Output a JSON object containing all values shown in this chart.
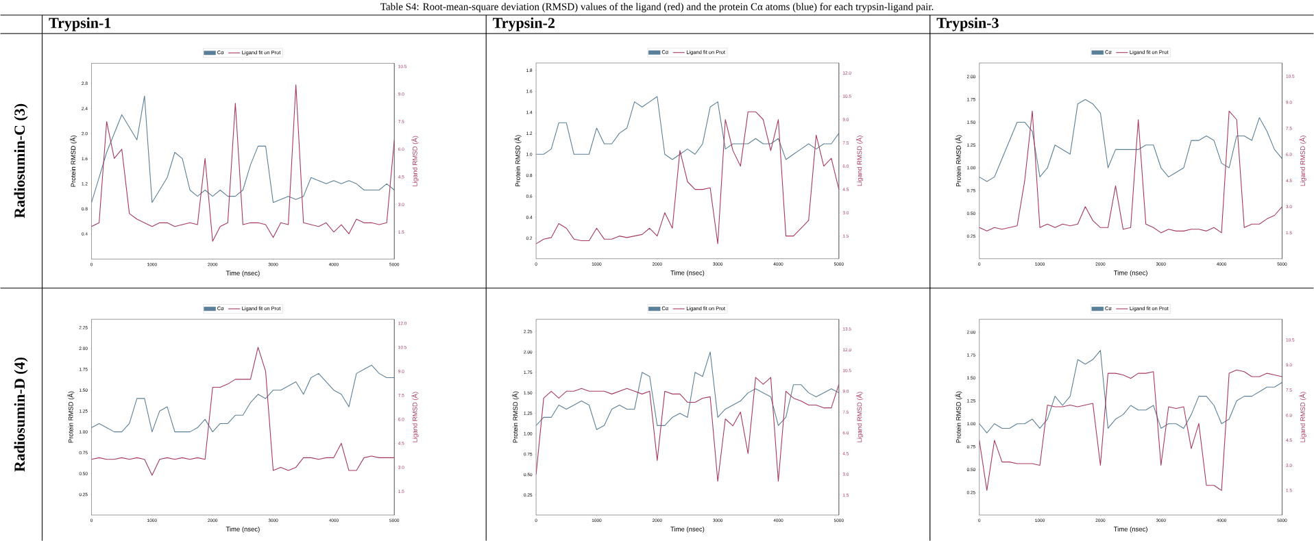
{
  "chart_data": [
    {
      "type": "line",
      "title": "Trypsin-1",
      "annotations": [
        "Table S4: Root-mean-square deviation (RMSD) values of the ligand (red) and the protein Cα atoms (blue) for each trypsin-ligand pair.",
        "Radiosumin-C (3)"
      ],
      "xlabel": "Time (nsec)",
      "ylabel": "Protein RMSD (Å)",
      "y2label": "Ligand RMSD (Å)",
      "legend": "top",
      "marker": "none",
      "line_style": "solid",
      "xlim": [
        0,
        5000
      ],
      "xticks": [
        0,
        1000,
        2000,
        3000,
        4000,
        5000
      ],
      "ylim": [
        0,
        3.12
      ],
      "yticks": [
        0.4,
        0.8,
        1.2,
        1.6,
        {
          "value": 2,
          "label": "2.0"
        },
        2.4,
        2.8
      ],
      "y2lim": [
        0.03,
        10.67
      ],
      "y2ticks": [
        1.5,
        {
          "value": 3,
          "label": "3.0"
        },
        4.5,
        {
          "value": 6,
          "label": "6.0"
        },
        7.5,
        {
          "value": 9,
          "label": "9.0"
        },
        10.5
      ],
      "x": [
        0,
        125,
        250,
        375,
        500,
        625,
        750,
        875,
        1000,
        1125,
        1250,
        1375,
        1500,
        1625,
        1750,
        1875,
        2000,
        2125,
        2250,
        2375,
        2500,
        2625,
        2750,
        2875,
        3000,
        3125,
        3250,
        3375,
        3500,
        3625,
        3750,
        3875,
        4000,
        4125,
        4250,
        4375,
        4500,
        4625,
        4750,
        4875,
        5000
      ],
      "series": [
        {
          "name": "Cα",
          "color": "#5a7f98",
          "values": [
            0.9,
            1.3,
            1.7,
            2.0,
            2.3,
            2.1,
            1.9,
            2.6,
            0.9,
            1.1,
            1.3,
            1.7,
            1.6,
            1.1,
            1.0,
            1.1,
            1.0,
            1.1,
            1.0,
            1.0,
            1.1,
            1.5,
            1.8,
            1.8,
            0.9,
            0.95,
            1.0,
            0.95,
            1.0,
            1.3,
            1.25,
            1.2,
            1.25,
            1.2,
            1.25,
            1.2,
            1.1,
            1.1,
            1.1,
            1.2,
            1.1
          ]
        },
        {
          "name": "Ligand fit on Prot",
          "color": "#a6385b",
          "axis": "y2",
          "values": [
            1.8,
            2.0,
            7.5,
            5.5,
            6.0,
            2.5,
            2.2,
            2.0,
            1.8,
            2.0,
            2.0,
            1.8,
            1.9,
            2.0,
            1.9,
            5.5,
            1.0,
            1.8,
            2.0,
            8.5,
            1.9,
            2.0,
            2.0,
            1.9,
            1.2,
            2.0,
            1.9,
            9.5,
            2.0,
            1.9,
            1.8,
            2.0,
            1.5,
            1.9,
            1.4,
            2.2,
            2.0,
            2.0,
            1.9,
            2.0,
            6.5
          ]
        }
      ]
    },
    {
      "type": "line",
      "title": "Trypsin-2",
      "xlabel": "Time (nsec)",
      "ylabel": "Protein RMSD (Å)",
      "y2label": "Ligand RMSD (Å)",
      "legend": "top",
      "marker": "none",
      "line_style": "solid",
      "xlim": [
        0,
        5000
      ],
      "xticks": [
        0,
        1000,
        2000,
        3000,
        4000,
        5000
      ],
      "ylim": [
        0.005,
        1.87
      ],
      "yticks": [
        0.2,
        0.4,
        0.6,
        0.8,
        {
          "value": 1,
          "label": "1.0"
        },
        1.2,
        1.4,
        1.6,
        1.8
      ],
      "y2lim": [
        0.04,
        12.64
      ],
      "y2ticks": [
        1.5,
        {
          "value": 3,
          "label": "3.0"
        },
        4.5,
        {
          "value": 6,
          "label": "6.0"
        },
        7.5,
        {
          "value": 9,
          "label": "9.0"
        },
        10.5,
        {
          "value": 12,
          "label": "12.0"
        }
      ],
      "x": [
        0,
        125,
        250,
        375,
        500,
        625,
        750,
        875,
        1000,
        1125,
        1250,
        1375,
        1500,
        1625,
        1750,
        1875,
        2000,
        2125,
        2250,
        2375,
        2500,
        2625,
        2750,
        2875,
        3000,
        3125,
        3250,
        3375,
        3500,
        3625,
        3750,
        3875,
        4000,
        4125,
        4250,
        4375,
        4500,
        4625,
        4750,
        4875,
        5000
      ],
      "series": [
        {
          "name": "Cα",
          "color": "#5a7f98",
          "values": [
            1.0,
            1.0,
            1.05,
            1.3,
            1.3,
            1.0,
            1.0,
            1.0,
            1.25,
            1.1,
            1.1,
            1.2,
            1.25,
            1.5,
            1.45,
            1.5,
            1.55,
            1.0,
            0.95,
            1.0,
            1.05,
            1.0,
            1.1,
            1.45,
            1.5,
            1.05,
            1.1,
            1.1,
            1.1,
            1.15,
            1.1,
            1.1,
            1.15,
            0.95,
            1.0,
            1.05,
            1.1,
            1.05,
            1.1,
            1.1,
            1.2
          ]
        },
        {
          "name": "Ligand fit on Prot",
          "color": "#a6385b",
          "axis": "y2",
          "values": [
            1.0,
            1.3,
            1.4,
            2.3,
            2.0,
            1.3,
            1.2,
            1.2,
            2.0,
            1.3,
            1.3,
            1.5,
            1.4,
            1.5,
            1.6,
            2.0,
            1.5,
            3.0,
            2.0,
            7.0,
            5.0,
            4.5,
            4.5,
            4.6,
            1.0,
            9.0,
            7.0,
            6.0,
            9.5,
            9.5,
            9.0,
            7.0,
            9.0,
            1.5,
            1.5,
            2.0,
            2.5,
            8.0,
            6.0,
            6.5,
            4.5
          ]
        }
      ]
    },
    {
      "type": "line",
      "title": "Trypsin-3",
      "xlabel": "Time (nsec)",
      "ylabel": "Protein RMSD (Å)",
      "y2label": "Ligand RMSD (Å)",
      "legend": "top",
      "marker": "none",
      "line_style": "solid",
      "xlim": [
        0,
        5000
      ],
      "xticks": [
        0,
        1000,
        2000,
        3000,
        4000,
        5000
      ],
      "ylim": [
        0.003,
        2.15
      ],
      "yticks": [
        0.25,
        {
          "value": 0.5,
          "label": "0.50"
        },
        0.75,
        {
          "value": 1,
          "label": "1.00"
        },
        1.25,
        {
          "value": 1.5,
          "label": "1.50"
        },
        1.75,
        {
          "value": 2,
          "label": "2.00"
        }
      ],
      "y2lim": [
        0.01,
        11.26
      ],
      "y2ticks": [
        1.5,
        {
          "value": 3,
          "label": "3.0"
        },
        4.5,
        {
          "value": 6,
          "label": "6.0"
        },
        7.5,
        {
          "value": 9,
          "label": "9.0"
        },
        10.5
      ],
      "x": [
        0,
        125,
        250,
        375,
        500,
        625,
        750,
        875,
        1000,
        1125,
        1250,
        1375,
        1500,
        1625,
        1750,
        1875,
        2000,
        2125,
        2250,
        2375,
        2500,
        2625,
        2750,
        2875,
        3000,
        3125,
        3250,
        3375,
        3500,
        3625,
        3750,
        3875,
        4000,
        4125,
        4250,
        4375,
        4500,
        4625,
        4750,
        4875,
        5000
      ],
      "series": [
        {
          "name": "Cα",
          "color": "#5a7f98",
          "values": [
            0.9,
            0.85,
            0.9,
            1.1,
            1.3,
            1.5,
            1.5,
            1.4,
            0.9,
            1.0,
            1.25,
            1.2,
            1.15,
            1.7,
            1.75,
            1.7,
            1.6,
            1.0,
            1.2,
            1.2,
            1.2,
            1.2,
            1.25,
            1.25,
            1.0,
            0.9,
            0.95,
            1.0,
            1.3,
            1.3,
            1.35,
            1.3,
            1.05,
            1.0,
            1.35,
            1.35,
            1.3,
            1.55,
            1.4,
            1.2,
            1.1
          ]
        },
        {
          "name": "Ligand fit on Prot",
          "color": "#a6385b",
          "axis": "y2",
          "values": [
            1.8,
            1.6,
            1.8,
            1.7,
            1.8,
            1.9,
            4.5,
            8.5,
            1.8,
            2.0,
            1.8,
            2.0,
            1.9,
            2.0,
            3.0,
            2.2,
            1.8,
            1.8,
            4.2,
            1.7,
            1.8,
            8.0,
            2.0,
            1.8,
            1.5,
            1.7,
            1.6,
            1.6,
            1.7,
            1.7,
            1.6,
            1.8,
            1.5,
            8.5,
            8.0,
            1.8,
            2.0,
            2.0,
            2.3,
            2.5,
            3.0
          ]
        }
      ]
    },
    {
      "type": "line",
      "annotations": [
        "Radiosumin-D (4)"
      ],
      "xlabel": "Time (nsec)",
      "ylabel": "Protein RMSD (Å)",
      "y2label": "Ligand RMSD (Å)",
      "legend": "top",
      "marker": "none",
      "line_style": "solid",
      "xlim": [
        0,
        5000
      ],
      "xticks": [
        0,
        1000,
        2000,
        3000,
        4000,
        5000
      ],
      "ylim": [
        0.003,
        2.35
      ],
      "yticks": [
        0.25,
        {
          "value": 0.5,
          "label": "0.50"
        },
        0.75,
        {
          "value": 1,
          "label": "1.00"
        },
        1.25,
        {
          "value": 1.5,
          "label": "1.50"
        },
        1.75,
        {
          "value": 2,
          "label": "2.00"
        },
        2.25
      ],
      "y2lim": [
        0.02,
        12.25
      ],
      "y2ticks": [
        1.5,
        {
          "value": 3,
          "label": "3.0"
        },
        4.5,
        {
          "value": 6,
          "label": "6.0"
        },
        7.5,
        {
          "value": 9,
          "label": "9.0"
        },
        10.5,
        {
          "value": 12,
          "label": "12.0"
        }
      ],
      "x": [
        0,
        125,
        250,
        375,
        500,
        625,
        750,
        875,
        1000,
        1125,
        1250,
        1375,
        1500,
        1625,
        1750,
        1875,
        2000,
        2125,
        2250,
        2375,
        2500,
        2625,
        2750,
        2875,
        3000,
        3125,
        3250,
        3375,
        3500,
        3625,
        3750,
        3875,
        4000,
        4125,
        4250,
        4375,
        4500,
        4625,
        4750,
        4875,
        5000
      ],
      "series": [
        {
          "name": "Cα",
          "color": "#5a7f98",
          "values": [
            1.05,
            1.1,
            1.05,
            1.0,
            1.0,
            1.1,
            1.4,
            1.4,
            1.0,
            1.25,
            1.3,
            1.0,
            1.0,
            1.0,
            1.05,
            1.15,
            1.0,
            1.1,
            1.1,
            1.2,
            1.2,
            1.35,
            1.45,
            1.4,
            1.5,
            1.5,
            1.55,
            1.6,
            1.45,
            1.65,
            1.7,
            1.6,
            1.5,
            1.45,
            1.3,
            1.7,
            1.75,
            1.8,
            1.7,
            1.65,
            1.65
          ]
        },
        {
          "name": "Ligand fit on Prot",
          "color": "#a6385b",
          "axis": "y2",
          "values": [
            3.5,
            3.6,
            3.5,
            3.5,
            3.6,
            3.5,
            3.6,
            3.5,
            2.5,
            3.5,
            3.6,
            3.5,
            3.6,
            3.5,
            3.6,
            3.5,
            8.0,
            8.0,
            8.2,
            8.5,
            8.5,
            8.5,
            10.5,
            9.0,
            2.8,
            3.0,
            2.8,
            3.0,
            3.6,
            3.6,
            3.5,
            3.6,
            3.6,
            4.5,
            2.8,
            2.8,
            3.6,
            3.7,
            3.6,
            3.6,
            3.6
          ]
        }
      ]
    },
    {
      "type": "line",
      "xlabel": "Time (nsec)",
      "ylabel": "Protein RMSD (Å)",
      "y2label": "Ligand RMSD (Å)",
      "legend": "top",
      "marker": "none",
      "line_style": "solid",
      "xlim": [
        0,
        5000
      ],
      "xticks": [
        0,
        1000,
        2000,
        3000,
        4000,
        5000
      ],
      "ylim": [
        0.005,
        2.4
      ],
      "yticks": [
        0.25,
        {
          "value": 0.5,
          "label": "0.50"
        },
        0.75,
        {
          "value": 1,
          "label": "1.00"
        },
        1.25,
        {
          "value": 1.5,
          "label": "1.50"
        },
        1.75,
        {
          "value": 2,
          "label": "2.00"
        },
        2.25
      ],
      "y2lim": [
        0.06,
        14.2
      ],
      "y2ticks": [
        1.5,
        {
          "value": 3,
          "label": "3.0"
        },
        4.5,
        {
          "value": 6,
          "label": "6.0"
        },
        7.5,
        {
          "value": 9,
          "label": "9.0"
        },
        10.5,
        {
          "value": 12,
          "label": "12.0"
        },
        13.5
      ],
      "x": [
        0,
        125,
        250,
        375,
        500,
        625,
        750,
        875,
        1000,
        1125,
        1250,
        1375,
        1500,
        1625,
        1750,
        1875,
        2000,
        2125,
        2250,
        2375,
        2500,
        2625,
        2750,
        2875,
        3000,
        3125,
        3250,
        3375,
        3500,
        3625,
        3750,
        3875,
        4000,
        4125,
        4250,
        4375,
        4500,
        4625,
        4750,
        4875,
        5000
      ],
      "series": [
        {
          "name": "Cα",
          "color": "#5a7f98",
          "values": [
            1.1,
            1.2,
            1.2,
            1.35,
            1.3,
            1.35,
            1.4,
            1.35,
            1.05,
            1.1,
            1.3,
            1.35,
            1.3,
            1.3,
            1.75,
            1.7,
            1.1,
            1.1,
            1.2,
            1.25,
            1.2,
            1.75,
            1.7,
            2.0,
            1.2,
            1.3,
            1.35,
            1.4,
            1.5,
            1.55,
            1.5,
            1.45,
            1.1,
            1.2,
            1.6,
            1.6,
            1.5,
            1.45,
            1.5,
            1.55,
            1.5
          ]
        },
        {
          "name": "Ligand fit on Prot",
          "color": "#a6385b",
          "axis": "y2",
          "values": [
            3.0,
            8.5,
            9.0,
            8.5,
            9.0,
            9.0,
            9.2,
            9.0,
            9.0,
            9.0,
            8.8,
            9.0,
            9.2,
            9.0,
            8.8,
            9.0,
            4.0,
            9.0,
            8.8,
            8.8,
            8.2,
            8.2,
            8.5,
            8.6,
            2.5,
            7.0,
            6.5,
            7.5,
            4.5,
            10.0,
            9.5,
            10.0,
            2.5,
            9.0,
            8.5,
            8.3,
            8.0,
            8.0,
            7.8,
            7.8,
            9.5
          ]
        }
      ]
    },
    {
      "type": "line",
      "xlabel": "Time (nsec)",
      "ylabel": "Protein RMSD (Å)",
      "y2label": "Ligand RMSD (Å)",
      "legend": "top",
      "marker": "none",
      "line_style": "solid",
      "xlim": [
        0,
        5000
      ],
      "xticks": [
        0,
        1000,
        2000,
        3000,
        4000,
        5000
      ],
      "ylim": [
        0.004,
        2.14
      ],
      "yticks": [
        0.25,
        {
          "value": 0.5,
          "label": "0.50"
        },
        0.75,
        {
          "value": 1,
          "label": "1.00"
        },
        1.25,
        {
          "value": 1.5,
          "label": "1.50"
        },
        1.75,
        {
          "value": 2,
          "label": "2.00"
        }
      ],
      "y2lim": [
        0.03,
        11.73
      ],
      "y2ticks": [
        1.5,
        {
          "value": 3,
          "label": "3.0"
        },
        4.5,
        {
          "value": 6,
          "label": "6.0"
        },
        7.5,
        {
          "value": 9,
          "label": "9.0"
        },
        10.5
      ],
      "x": [
        0,
        125,
        250,
        375,
        500,
        625,
        750,
        875,
        1000,
        1125,
        1250,
        1375,
        1500,
        1625,
        1750,
        1875,
        2000,
        2125,
        2250,
        2375,
        2500,
        2625,
        2750,
        2875,
        3000,
        3125,
        3250,
        3375,
        3500,
        3625,
        3750,
        3875,
        4000,
        4125,
        4250,
        4375,
        4500,
        4625,
        4750,
        4875,
        5000
      ],
      "series": [
        {
          "name": "Cα",
          "color": "#5a7f98",
          "values": [
            1.0,
            0.9,
            1.0,
            0.95,
            0.95,
            1.0,
            1.0,
            1.05,
            0.95,
            1.05,
            1.3,
            1.2,
            1.3,
            1.7,
            1.65,
            1.7,
            1.8,
            0.95,
            1.05,
            1.1,
            1.2,
            1.15,
            1.15,
            1.2,
            0.95,
            1.0,
            1.0,
            0.95,
            1.1,
            1.3,
            1.3,
            1.2,
            1.0,
            1.05,
            1.25,
            1.3,
            1.3,
            1.35,
            1.4,
            1.4,
            1.45
          ]
        },
        {
          "name": "Ligand fit on Prot",
          "color": "#a6385b",
          "axis": "y2",
          "values": [
            4.5,
            1.5,
            4.5,
            3.2,
            3.2,
            3.1,
            3.1,
            3.1,
            3.0,
            6.6,
            6.5,
            6.5,
            6.6,
            6.5,
            6.6,
            6.7,
            3.0,
            8.5,
            8.5,
            8.4,
            8.2,
            8.5,
            8.5,
            8.6,
            3.0,
            6.5,
            6.4,
            6.5,
            4.0,
            5.5,
            1.8,
            1.8,
            1.5,
            8.5,
            8.7,
            8.6,
            8.3,
            8.3,
            8.5,
            8.4,
            8.3
          ]
        }
      ]
    }
  ]
}
